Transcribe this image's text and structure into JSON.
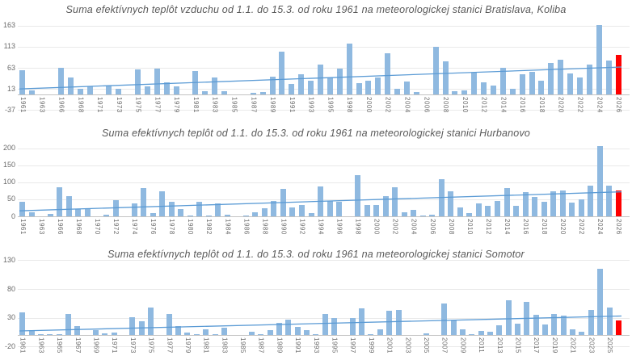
{
  "chart_data": [
    {
      "type": "bar",
      "station": "Bratislava, Koliba",
      "title": "Suma efektívnych teplôt vzduchu od 1.1. do 15.3. od roku 1961 na meteorologickej stanici Bratislava, Koliba",
      "bar_color": "#8fb9e0",
      "highlight_color": "#fe0000",
      "highlight_category": 2026,
      "trendline": {
        "start_value": 13,
        "end_value": 65,
        "color": "#5b9bd5"
      },
      "y_ticks": [
        163,
        113,
        63,
        13,
        -37
      ],
      "ylim": [
        -37,
        170
      ],
      "label_interval": 2,
      "grid": true,
      "legend": "none",
      "categories": [
        1961,
        1962,
        1963,
        1965,
        1966,
        1967,
        1968,
        1970,
        1971,
        1972,
        1973,
        1974,
        1975,
        1976,
        1977,
        1978,
        1979,
        1980,
        1981,
        1982,
        1983,
        1984,
        1985,
        1986,
        1987,
        1988,
        1989,
        1990,
        1991,
        1992,
        1993,
        1994,
        1995,
        1997,
        1998,
        1999,
        2000,
        2001,
        2002,
        2003,
        2004,
        2005,
        2006,
        2007,
        2008,
        2009,
        2010,
        2011,
        2012,
        2013,
        2014,
        2015,
        2016,
        2017,
        2018,
        2019,
        2020,
        2021,
        2022,
        2023,
        2024,
        2025,
        2026
      ],
      "values": [
        58,
        9,
        0,
        0,
        63,
        40,
        14,
        20,
        0,
        21,
        13,
        0,
        60,
        20,
        62,
        28,
        20,
        0,
        55,
        8,
        40,
        8,
        0,
        0,
        4,
        6,
        43,
        102,
        25,
        48,
        32,
        71,
        40,
        62,
        120,
        27,
        32,
        41,
        98,
        13,
        30,
        5,
        0,
        113,
        79,
        7,
        9,
        51,
        29,
        21,
        64,
        13,
        48,
        53,
        32,
        74,
        82,
        50,
        41,
        71,
        165,
        80,
        93
      ]
    },
    {
      "type": "bar",
      "station": "Hurbanovo",
      "title": "Suma efektívnych teplôt od 1.1. do 15.3. od roku 1961 na meteorologickej stanici Hurbanovo",
      "bar_color": "#8fb9e0",
      "highlight_color": "#fe0000",
      "highlight_category": 2026,
      "trendline": {
        "start_value": 16,
        "end_value": 72,
        "color": "#5b9bd5"
      },
      "y_ticks": [
        200,
        150,
        100,
        50,
        0
      ],
      "ylim": [
        0,
        210
      ],
      "label_interval": 2,
      "grid": true,
      "legend": "none",
      "categories": [
        1961,
        1962,
        1963,
        1965,
        1966,
        1967,
        1968,
        1969,
        1970,
        1971,
        1972,
        1973,
        1974,
        1975,
        1976,
        1977,
        1978,
        1979,
        1980,
        1981,
        1982,
        1983,
        1984,
        1985,
        1986,
        1987,
        1988,
        1989,
        1990,
        1991,
        1992,
        1993,
        1994,
        1995,
        1996,
        1997,
        1998,
        1999,
        2000,
        2001,
        2002,
        2003,
        2004,
        2005,
        2006,
        2007,
        2008,
        2009,
        2010,
        2011,
        2012,
        2013,
        2014,
        2015,
        2016,
        2017,
        2018,
        2019,
        2020,
        2021,
        2022,
        2023,
        2024,
        2025,
        2026
      ],
      "values": [
        42,
        13,
        0,
        8,
        85,
        60,
        21,
        24,
        0,
        5,
        48,
        0,
        38,
        82,
        10,
        73,
        43,
        22,
        2,
        43,
        2,
        39,
        6,
        0,
        3,
        12,
        24,
        46,
        80,
        25,
        33,
        10,
        88,
        46,
        43,
        0,
        122,
        34,
        34,
        60,
        85,
        11,
        18,
        3,
        5,
        110,
        74,
        25,
        10,
        38,
        32,
        46,
        84,
        30,
        71,
        57,
        42,
        74,
        77,
        40,
        51,
        91,
        205,
        91,
        77
      ]
    },
    {
      "type": "bar",
      "station": "Somotor",
      "title": "Suma efektívnych teplôt od 1.1. do 15.3. od roku 1961 na meteorologickej stanici Somotor",
      "bar_color": "#8fb9e0",
      "highlight_color": "#fe0000",
      "highlight_category": 2026,
      "trendline": {
        "start_value": 7,
        "end_value": 33,
        "color": "#5b9bd5"
      },
      "y_ticks": [
        130,
        80,
        30,
        -20
      ],
      "ylim": [
        -20,
        130
      ],
      "label_interval": 2,
      "grid": true,
      "legend": "none",
      "categories": [
        1961,
        1962,
        1963,
        1964,
        1965,
        1966,
        1967,
        1968,
        1969,
        1970,
        1971,
        1972,
        1973,
        1974,
        1975,
        1976,
        1977,
        1978,
        1979,
        1980,
        1981,
        1982,
        1983,
        1984,
        1985,
        1986,
        1987,
        1988,
        1989,
        1990,
        1991,
        1992,
        1993,
        1994,
        1995,
        1996,
        1997,
        1998,
        1999,
        2000,
        2001,
        2002,
        2003,
        2004,
        2005,
        2006,
        2007,
        2008,
        2009,
        2010,
        2011,
        2012,
        2013,
        2014,
        2015,
        2016,
        2017,
        2018,
        2019,
        2020,
        2021,
        2022,
        2023,
        2024,
        2025,
        2026
      ],
      "values": [
        39,
        8,
        2,
        1,
        2,
        37,
        15,
        0,
        9,
        3,
        4,
        0,
        31,
        24,
        48,
        0,
        36,
        16,
        4,
        2,
        10,
        2,
        13,
        0,
        0,
        5,
        2,
        8,
        21,
        27,
        14,
        8,
        2,
        37,
        29,
        0,
        30,
        47,
        2,
        10,
        42,
        44,
        0,
        0,
        3,
        0,
        55,
        26,
        10,
        2,
        7,
        6,
        17,
        60,
        20,
        57,
        35,
        19,
        36,
        34,
        10,
        6,
        43,
        115,
        48,
        26
      ]
    }
  ]
}
